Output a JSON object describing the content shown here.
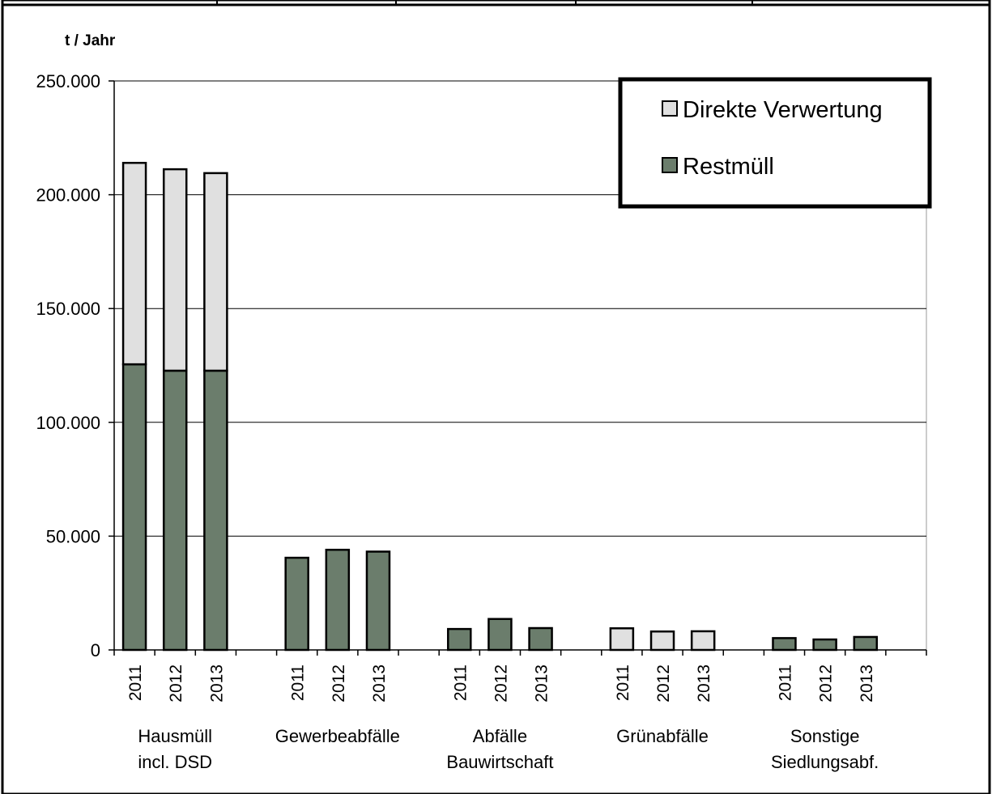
{
  "chart_data": {
    "type": "bar",
    "stacked": true,
    "ylabel": "t / Jahr",
    "ylim": [
      0,
      250000
    ],
    "yticks": [
      0,
      50000,
      100000,
      150000,
      200000,
      250000
    ],
    "ytick_labels": [
      "0",
      "50.000",
      "100.000",
      "150.000",
      "200.000",
      "250.000"
    ],
    "grid": true,
    "legend_position": "top-right",
    "groups": [
      {
        "label": [
          "Hausmüll",
          "incl. DSD"
        ]
      },
      {
        "label": [
          "Gewerbeabfälle"
        ]
      },
      {
        "label": [
          "Abfälle",
          "Bauwirtschaft"
        ]
      },
      {
        "label": [
          "Grünabfälle"
        ]
      },
      {
        "label": [
          "Sonstige",
          "Siedlungsabf."
        ]
      }
    ],
    "years": [
      "2011",
      "2012",
      "2013"
    ],
    "series": [
      {
        "name": "Restmüll",
        "color": "#6b7d6c",
        "values": [
          [
            125500,
            122700,
            122700
          ],
          [
            40500,
            44000,
            43200
          ],
          [
            9200,
            13600,
            9600
          ],
          [
            0,
            0,
            0
          ],
          [
            5200,
            4600,
            5700
          ]
        ]
      },
      {
        "name": "Direkte Verwertung",
        "color": "#e0e0e0",
        "values": [
          [
            88500,
            88500,
            86800
          ],
          [
            0,
            0,
            0
          ],
          [
            0,
            0,
            0
          ],
          [
            9500,
            8100,
            8200
          ],
          [
            0,
            0,
            0
          ]
        ]
      }
    ],
    "legend_order": [
      1,
      0
    ]
  }
}
